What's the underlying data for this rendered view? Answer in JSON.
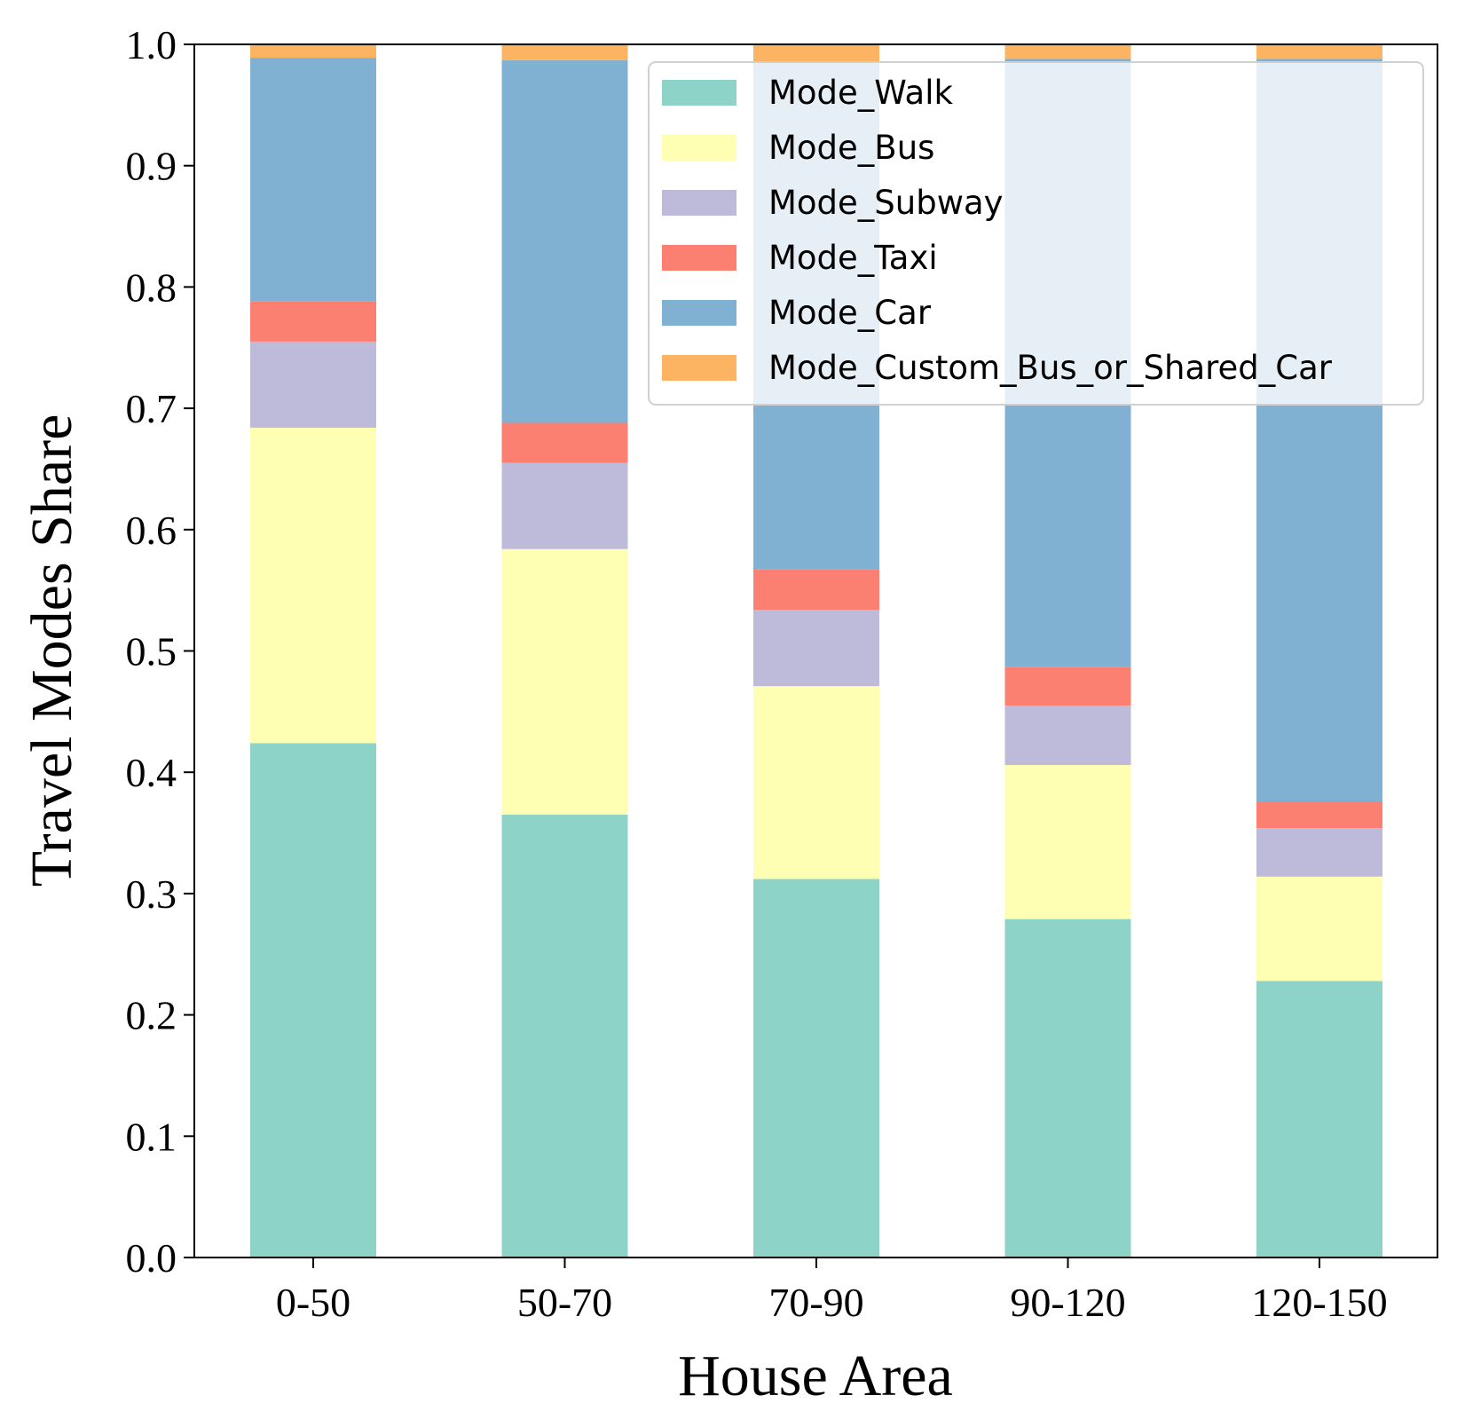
{
  "chart_data": {
    "type": "bar",
    "stacked": true,
    "categories": [
      "0-50",
      "50-70",
      "70-90",
      "90-120",
      "120-150"
    ],
    "xlabel": "House Area",
    "ylabel": "Travel Modes Share",
    "ylim": [
      0,
      1.0
    ],
    "yticks": [
      "0.0",
      "0.1",
      "0.2",
      "0.3",
      "0.4",
      "0.5",
      "0.6",
      "0.7",
      "0.8",
      "0.9",
      "1.0"
    ],
    "legend_position": "top-right",
    "grid": false,
    "series": [
      {
        "name": "Mode_Walk",
        "color": "#8dd3c7",
        "values": [
          0.424,
          0.365,
          0.312,
          0.279,
          0.228
        ]
      },
      {
        "name": "Mode_Bus",
        "color": "#ffffb3",
        "values": [
          0.26,
          0.219,
          0.159,
          0.127,
          0.086
        ]
      },
      {
        "name": "Mode_Subway",
        "color": "#bebada",
        "values": [
          0.071,
          0.071,
          0.063,
          0.049,
          0.04
        ]
      },
      {
        "name": "Mode_Taxi",
        "color": "#fb8072",
        "values": [
          0.033,
          0.033,
          0.033,
          0.032,
          0.022
        ]
      },
      {
        "name": "Mode_Car",
        "color": "#80b1d3",
        "values": [
          0.201,
          0.299,
          0.419,
          0.501,
          0.612
        ]
      },
      {
        "name": "Mode_Custom_Bus_or_Shared_Car",
        "color": "#fdb462",
        "values": [
          0.011,
          0.013,
          0.014,
          0.012,
          0.012
        ]
      }
    ]
  }
}
